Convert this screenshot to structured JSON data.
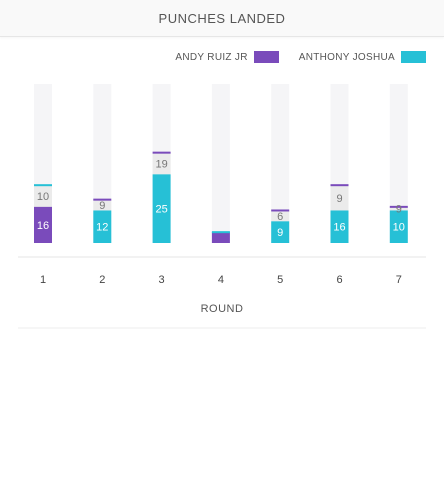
{
  "header": {
    "title": "PUNCHES LANDED"
  },
  "legend": [
    {
      "label": "ANDY RUIZ JR",
      "color": "#7a4bbb"
    },
    {
      "label": "ANTHONY JOSHUA",
      "color": "#26c0d6"
    }
  ],
  "colors": {
    "track": "#f5f5f7",
    "ruiz": "#7a4bbb",
    "joshua": "#26c0d6",
    "sub_label": "#777777"
  },
  "chart_data": {
    "type": "bar",
    "title": "PUNCHES LANDED",
    "xlabel": "ROUND",
    "categories": [
      "1",
      "2",
      "3",
      "4",
      "5",
      "6",
      "7"
    ],
    "ylim": [
      0,
      44
    ],
    "series": [
      {
        "name": "ANDY RUIZ JR",
        "values": [
          10,
          12,
          25,
          3,
          9,
          16,
          10
        ]
      },
      {
        "name": "ANTHONY JOSHUA",
        "values": [
          16,
          9,
          19,
          3,
          6,
          9,
          9
        ]
      }
    ],
    "bottom_labels": [
      "16",
      "12",
      "25",
      "",
      "9",
      "16",
      "10"
    ],
    "top_labels": [
      "10",
      "9",
      "19",
      "",
      "6",
      "9",
      "9"
    ]
  }
}
